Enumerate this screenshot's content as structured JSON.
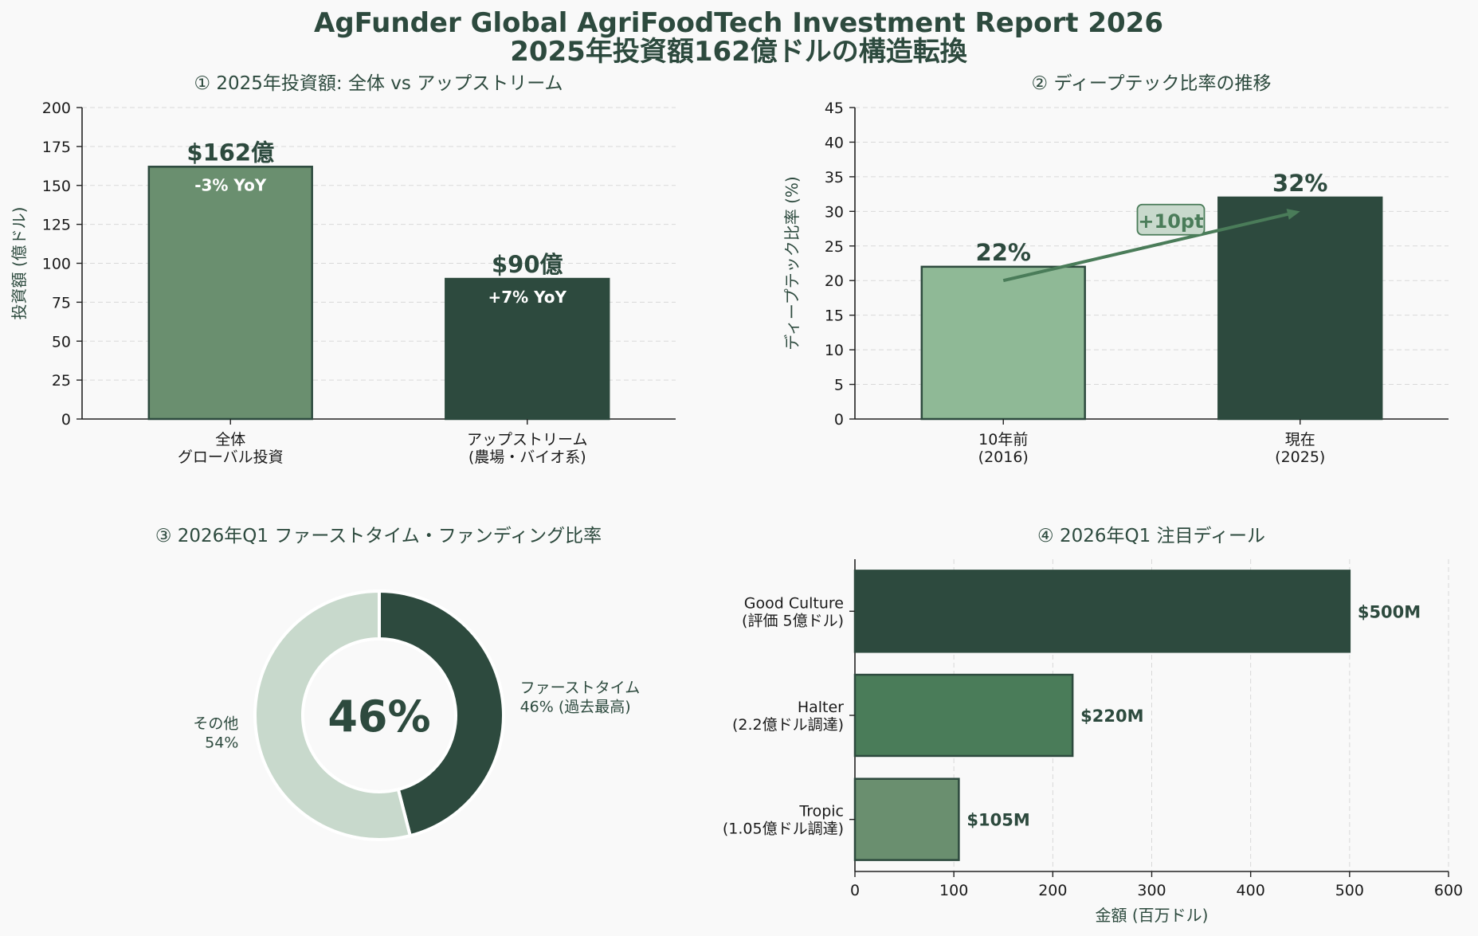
{
  "figure": {
    "title_line1": "AgFunder Global AgriFoodTech Investment Report 2026",
    "title_line2": "2025年投資額162億ドルの構造転換"
  },
  "colors": {
    "dark": "#2d4a3e",
    "mid": "#4a7c59",
    "muted": "#6a8f6f",
    "light": "#8fb996",
    "pale": "#c8d9cc",
    "background": "#f9f9f9"
  },
  "chart_data": [
    {
      "type": "bar",
      "title": "① 2025年投資額: 全体 vs アップストリーム",
      "ylabel": "投資額 (億ドル)",
      "xlabel": "",
      "ylim": [
        0,
        200
      ],
      "yticks": [
        "0",
        "25",
        "50",
        "75",
        "100",
        "125",
        "150",
        "175",
        "200"
      ],
      "grid": true,
      "categories": [
        [
          "全体",
          "グローバル投資"
        ],
        [
          "アップストリーム",
          "(農場・バイオ系)"
        ]
      ],
      "values": [
        162,
        90
      ],
      "value_labels": [
        "$162億",
        "$90億"
      ],
      "inner_labels": [
        "-3% YoY",
        "+7% YoY"
      ],
      "bar_colors": [
        "#6a8f6f",
        "#2d4a3e"
      ]
    },
    {
      "type": "bar",
      "title": "② ディープテック比率の推移",
      "ylabel": "ディープテック比率 (%)",
      "xlabel": "",
      "ylim": [
        0,
        45
      ],
      "yticks": [
        "0",
        "5",
        "10",
        "15",
        "20",
        "25",
        "30",
        "35",
        "40",
        "45"
      ],
      "grid": true,
      "categories": [
        [
          "10年前",
          "(2016)"
        ],
        [
          "現在",
          "(2025)"
        ]
      ],
      "values": [
        22,
        32
      ],
      "value_labels": [
        "22%",
        "32%"
      ],
      "bar_colors": [
        "#8fb996",
        "#2d4a3e"
      ],
      "annotation": {
        "text": "+10pt",
        "from": [
          0,
          20
        ],
        "to": [
          1,
          30
        ]
      }
    },
    {
      "type": "pie",
      "title": "③ 2026年Q1 ファーストタイム・ファンディング比率",
      "center_label": "46%",
      "slices": [
        {
          "name": "ファーストタイム",
          "value": 46,
          "label_line1": "ファーストタイム",
          "label_line2": "46% (過去最高)",
          "color": "#2d4a3e"
        },
        {
          "name": "その他",
          "value": 54,
          "label_line1": "その他",
          "label_line2": "54%",
          "color": "#c8d9cc"
        }
      ]
    },
    {
      "type": "bar",
      "orientation": "horizontal",
      "title": "④ 2026年Q1 注目ディール",
      "xlabel": "金額 (百万ドル)",
      "xlim": [
        0,
        600
      ],
      "xticks": [
        "0",
        "100",
        "200",
        "300",
        "400",
        "500",
        "600"
      ],
      "grid": true,
      "categories": [
        [
          "Good Culture",
          "(評価 5億ドル)"
        ],
        [
          "Halter",
          "(2.2億ドル調達)"
        ],
        [
          "Tropic",
          "(1.05億ドル調達)"
        ]
      ],
      "values": [
        500,
        220,
        105
      ],
      "value_labels": [
        "$500M",
        "$220M",
        "$105M"
      ],
      "bar_colors": [
        "#2d4a3e",
        "#4a7c59",
        "#6a8f6f"
      ]
    }
  ]
}
